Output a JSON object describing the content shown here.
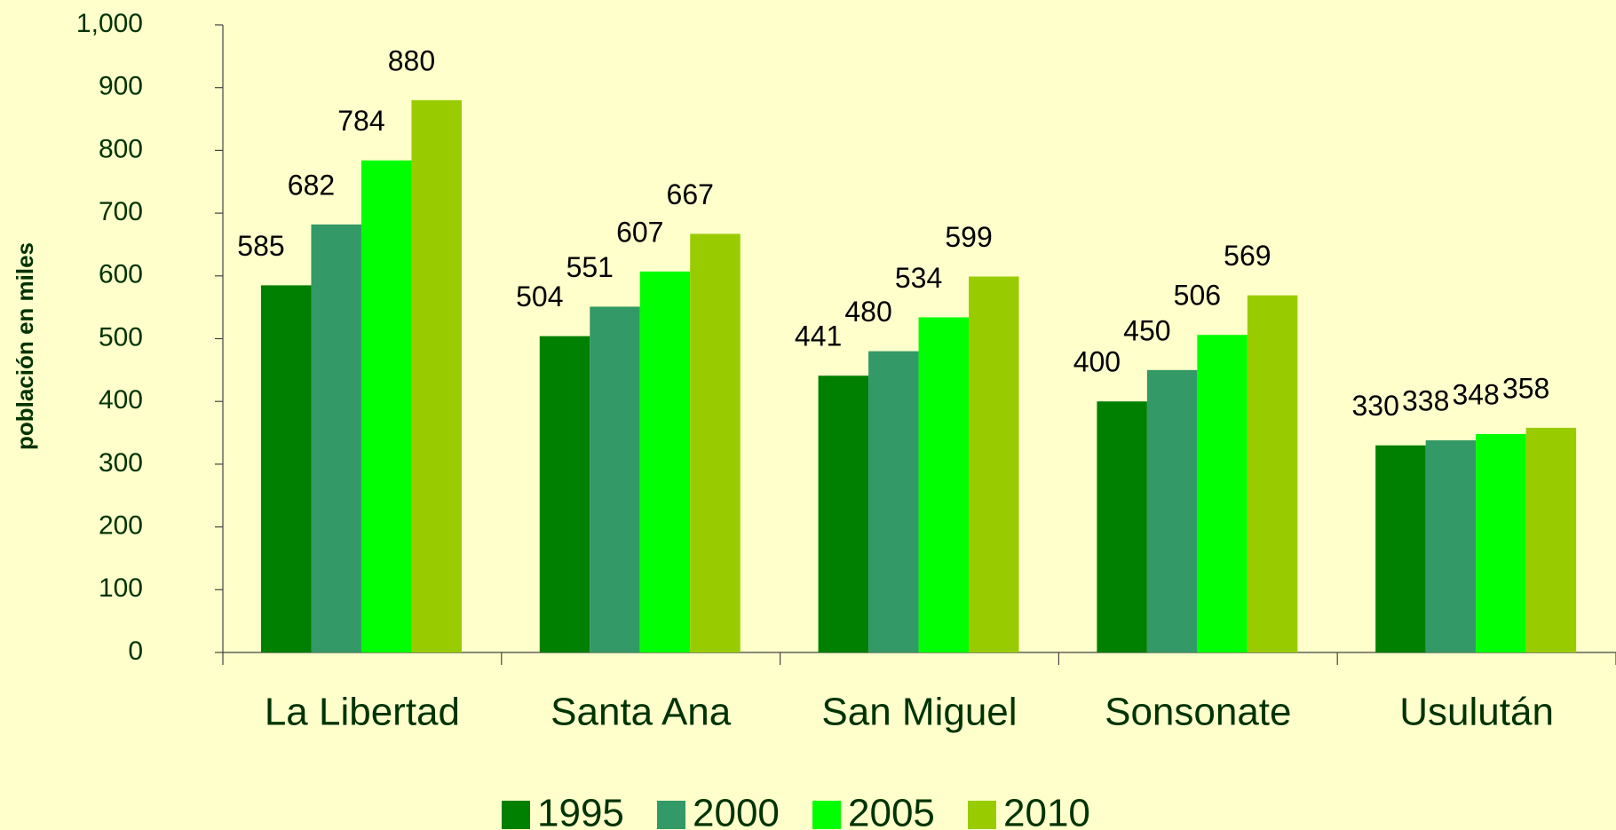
{
  "chart_data": {
    "type": "bar",
    "y_label": "población en miles",
    "categories": [
      "La Libertad",
      "Santa Ana",
      "San Miguel",
      "Sonsonate",
      "Usulután"
    ],
    "series": [
      {
        "name": "1995",
        "color": "#008000",
        "values": [
          585,
          504,
          441,
          400,
          330
        ]
      },
      {
        "name": "2000",
        "color": "#339966",
        "values": [
          682,
          551,
          480,
          450,
          338
        ]
      },
      {
        "name": "2005",
        "color": "#00ff00",
        "values": [
          784,
          607,
          534,
          506,
          348
        ]
      },
      {
        "name": "2010",
        "color": "#99cc00",
        "values": [
          880,
          667,
          599,
          569,
          358
        ]
      }
    ],
    "ylim": [
      0,
      1000
    ],
    "yticks": [
      0,
      100,
      200,
      300,
      400,
      500,
      600,
      700,
      800,
      900,
      {
        "value": 1000,
        "label": "1,000"
      }
    ],
    "legend": "bottom"
  }
}
